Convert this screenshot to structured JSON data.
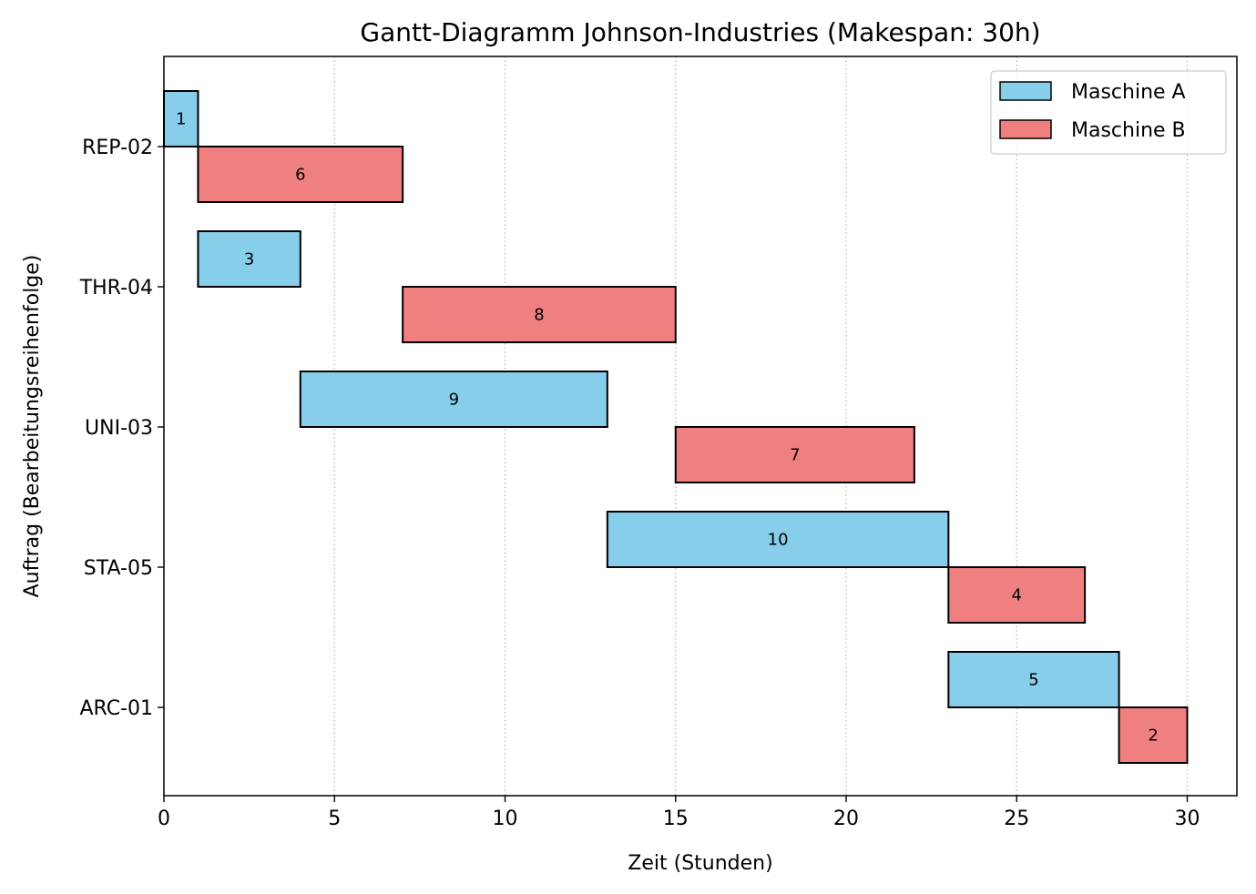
{
  "chart_data": {
    "type": "gantt",
    "title": "Gantt-Diagramm Johnson-Industries (Makespan: 30h)",
    "xlabel": "Zeit (Stunden)",
    "ylabel": "Auftrag (Bearbeitungsreihenfolge)",
    "xlim": [
      0,
      31.5
    ],
    "xticks": [
      0,
      5,
      10,
      15,
      20,
      25,
      30
    ],
    "grid": "x-dotted",
    "legend_position": "top-right",
    "jobs": [
      "REP-02",
      "THR-04",
      "UNI-03",
      "STA-05",
      "ARC-01"
    ],
    "series": [
      {
        "name": "Maschine A",
        "color": "#87ceeb",
        "tasks": [
          {
            "job": "REP-02",
            "start": 0,
            "duration": 1
          },
          {
            "job": "THR-04",
            "start": 1,
            "duration": 3
          },
          {
            "job": "UNI-03",
            "start": 4,
            "duration": 9
          },
          {
            "job": "STA-05",
            "start": 13,
            "duration": 10
          },
          {
            "job": "ARC-01",
            "start": 23,
            "duration": 5
          }
        ]
      },
      {
        "name": "Maschine B",
        "color": "#f08080",
        "tasks": [
          {
            "job": "REP-02",
            "start": 1,
            "duration": 6
          },
          {
            "job": "THR-04",
            "start": 7,
            "duration": 8
          },
          {
            "job": "UNI-03",
            "start": 15,
            "duration": 7
          },
          {
            "job": "STA-05",
            "start": 23,
            "duration": 4
          },
          {
            "job": "ARC-01",
            "start": 28,
            "duration": 2
          }
        ]
      }
    ]
  }
}
